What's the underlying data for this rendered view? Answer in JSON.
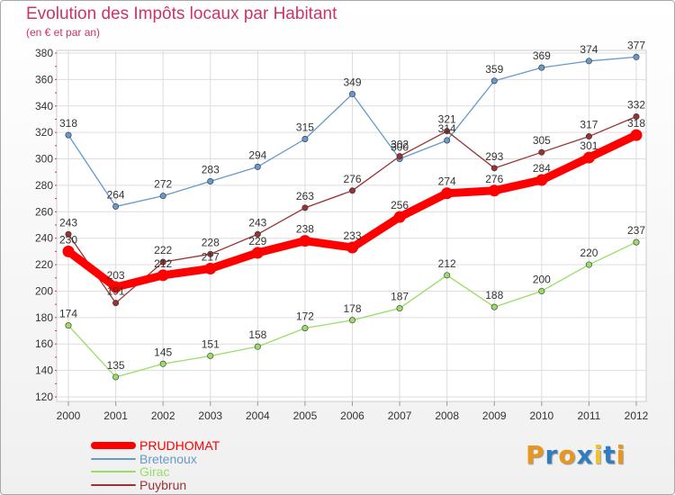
{
  "title": "Evolution des Impôts locaux par Habitant",
  "subtitle": "(en € et par an)",
  "logo": {
    "text": "Proxiti",
    "colors": [
      "#e8961e",
      "#2f7dc1",
      "#e8961e",
      "#2f7dc1",
      "#f2c12e",
      "#2f7dc1",
      "#e8961e"
    ]
  },
  "chart_data": {
    "type": "line",
    "title": "Evolution des Impôts locaux par Habitant",
    "subtitle": "(en € et par an)",
    "x": [
      "2000",
      "2001",
      "2002",
      "2003",
      "2004",
      "2005",
      "2006",
      "2007",
      "2008",
      "2009",
      "2010",
      "2011",
      "2012"
    ],
    "ylim": [
      120,
      380
    ],
    "yticks": [
      120,
      140,
      160,
      180,
      200,
      220,
      240,
      260,
      280,
      300,
      320,
      340,
      360,
      380
    ],
    "grid": true,
    "legend_position": "bottom-left",
    "series": [
      {
        "name": "PRUDHOMAT",
        "color": "#ff0000",
        "values": [
          230,
          203,
          212,
          217,
          229,
          238,
          233,
          256,
          274,
          276,
          284,
          301,
          318
        ]
      },
      {
        "name": "Bretenoux",
        "color": "#6699cc",
        "values": [
          318,
          264,
          272,
          283,
          294,
          315,
          349,
          300,
          314,
          359,
          369,
          374,
          377
        ]
      },
      {
        "name": "Girac",
        "color": "#99dd66",
        "values": [
          174,
          135,
          145,
          151,
          158,
          172,
          178,
          187,
          212,
          188,
          200,
          220,
          237
        ]
      },
      {
        "name": "Puybrun",
        "color": "#993333",
        "values": [
          243,
          191,
          222,
          228,
          243,
          263,
          276,
          302,
          321,
          293,
          305,
          317,
          332
        ]
      }
    ]
  }
}
